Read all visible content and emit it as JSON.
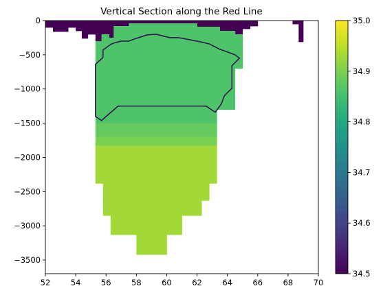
{
  "chart_data": {
    "type": "heatmap",
    "title": "Vertical Section along the Red Line",
    "xlabel": "",
    "ylabel": "",
    "xlim": [
      52,
      70
    ],
    "ylim": [
      -3700,
      0
    ],
    "x_ticks": [
      52,
      54,
      56,
      58,
      60,
      62,
      64,
      66,
      68,
      70
    ],
    "x_tick_labels": [
      "52",
      "54",
      "56",
      "58",
      "60",
      "62",
      "64",
      "66",
      "68",
      "70"
    ],
    "y_ticks": [
      0,
      -500,
      -1000,
      -1500,
      -2000,
      -2500,
      -3000,
      -3500
    ],
    "y_tick_labels": [
      "0",
      "−500",
      "−1000",
      "−1500",
      "−2000",
      "−2500",
      "−3000",
      "−3500"
    ],
    "colorbar": {
      "colormap": "viridis",
      "vmin": 34.5,
      "vmax": 35.0,
      "ticks": [
        34.5,
        34.6,
        34.7,
        34.8,
        34.9,
        35.0
      ],
      "tick_labels": [
        "34.5",
        "34.6",
        "34.7",
        "34.8",
        "34.9",
        "35.0"
      ]
    },
    "cells": [
      {
        "x0": 52.0,
        "x1": 52.5,
        "y0": 0,
        "y1": -100,
        "value": 34.5
      },
      {
        "x0": 52.5,
        "x1": 53.5,
        "y0": 0,
        "y1": -160,
        "value": 34.5
      },
      {
        "x0": 53.5,
        "x1": 54.0,
        "y0": 0,
        "y1": -100,
        "value": 34.5
      },
      {
        "x0": 54.0,
        "x1": 54.4,
        "y0": 0,
        "y1": -150,
        "value": 34.5
      },
      {
        "x0": 54.4,
        "x1": 54.8,
        "y0": 0,
        "y1": -260,
        "value": 34.5
      },
      {
        "x0": 54.8,
        "x1": 55.3,
        "y0": 0,
        "y1": -200,
        "value": 34.5
      },
      {
        "x0": 55.3,
        "x1": 55.7,
        "y0": 0,
        "y1": -300,
        "value": 34.5
      },
      {
        "x0": 55.7,
        "x1": 56.2,
        "y0": 0,
        "y1": -200,
        "value": 34.5
      },
      {
        "x0": 56.2,
        "x1": 56.5,
        "y0": 0,
        "y1": -250,
        "value": 34.5
      },
      {
        "x0": 56.5,
        "x1": 57.5,
        "y0": 0,
        "y1": -80,
        "value": 34.5
      },
      {
        "x0": 57.5,
        "x1": 62.0,
        "y0": 0,
        "y1": -40,
        "value": 34.5
      },
      {
        "x0": 62.0,
        "x1": 63.5,
        "y0": 0,
        "y1": -90,
        "value": 34.5
      },
      {
        "x0": 63.5,
        "x1": 64.5,
        "y0": 0,
        "y1": -150,
        "value": 34.5
      },
      {
        "x0": 64.5,
        "x1": 65.0,
        "y0": 0,
        "y1": -200,
        "value": 34.5
      },
      {
        "x0": 65.0,
        "x1": 65.5,
        "y0": 0,
        "y1": -120,
        "value": 34.5
      },
      {
        "x0": 65.5,
        "x1": 66.0,
        "y0": 0,
        "y1": -80,
        "value": 34.5
      },
      {
        "x0": 68.3,
        "x1": 68.7,
        "y0": 0,
        "y1": -50,
        "value": 34.5
      },
      {
        "x0": 68.7,
        "x1": 69.0,
        "y0": 0,
        "y1": -310,
        "value": 34.5
      },
      {
        "x0": 56.5,
        "x1": 57.5,
        "y0": -80,
        "y1": -300,
        "value": 34.86
      },
      {
        "x0": 57.5,
        "x1": 62.0,
        "y0": -40,
        "y1": -300,
        "value": 34.86
      },
      {
        "x0": 62.0,
        "x1": 63.5,
        "y0": -90,
        "y1": -300,
        "value": 34.86
      },
      {
        "x0": 63.5,
        "x1": 64.5,
        "y0": -150,
        "y1": -300,
        "value": 34.86
      },
      {
        "x0": 56.2,
        "x1": 56.5,
        "y0": -250,
        "y1": -300,
        "value": 34.86
      },
      {
        "x0": 55.7,
        "x1": 56.2,
        "y0": -200,
        "y1": -300,
        "value": 34.86
      },
      {
        "x0": 64.5,
        "x1": 65.0,
        "y0": -200,
        "y1": -300,
        "value": 34.86
      },
      {
        "x0": 55.3,
        "x1": 65.0,
        "y0": -300,
        "y1": -700,
        "value": 34.86
      },
      {
        "x0": 55.3,
        "x1": 64.5,
        "y0": -700,
        "y1": -1300,
        "value": 34.86
      },
      {
        "x0": 55.3,
        "x1": 63.3,
        "y0": -1300,
        "y1": -1500,
        "value": 34.86
      },
      {
        "x0": 55.3,
        "x1": 63.3,
        "y0": -1500,
        "y1": -1700,
        "value": 34.88
      },
      {
        "x0": 55.3,
        "x1": 63.3,
        "y0": -1700,
        "y1": -1830,
        "value": 34.9
      },
      {
        "x0": 55.3,
        "x1": 63.3,
        "y0": -1830,
        "y1": -2380,
        "value": 34.93
      },
      {
        "x0": 55.8,
        "x1": 62.8,
        "y0": -2380,
        "y1": -2630,
        "value": 34.93
      },
      {
        "x0": 55.8,
        "x1": 62.3,
        "y0": -2630,
        "y1": -2850,
        "value": 34.93
      },
      {
        "x0": 56.3,
        "x1": 61.0,
        "y0": -2850,
        "y1": -3130,
        "value": 34.93
      },
      {
        "x0": 58.0,
        "x1": 60.0,
        "y0": -3130,
        "y1": -3420,
        "value": 34.93
      }
    ],
    "contour": {
      "level": 34.875,
      "points": [
        [
          55.7,
          -1460
        ],
        [
          55.3,
          -1400
        ],
        [
          55.3,
          -640
        ],
        [
          55.8,
          -540
        ],
        [
          55.8,
          -430
        ],
        [
          56.3,
          -350
        ],
        [
          56.5,
          -330
        ],
        [
          57.0,
          -300
        ],
        [
          57.5,
          -300
        ],
        [
          58.0,
          -260
        ],
        [
          58.7,
          -210
        ],
        [
          59.3,
          -200
        ],
        [
          60.2,
          -250
        ],
        [
          60.8,
          -250
        ],
        [
          62.0,
          -300
        ],
        [
          62.8,
          -340
        ],
        [
          63.5,
          -420
        ],
        [
          63.9,
          -450
        ],
        [
          64.5,
          -500
        ],
        [
          64.8,
          -550
        ],
        [
          64.3,
          -660
        ],
        [
          64.3,
          -990
        ],
        [
          63.8,
          -1100
        ],
        [
          63.6,
          -1220
        ],
        [
          63.2,
          -1340
        ],
        [
          62.6,
          -1250
        ],
        [
          56.8,
          -1250
        ],
        [
          55.7,
          -1460
        ]
      ]
    }
  }
}
